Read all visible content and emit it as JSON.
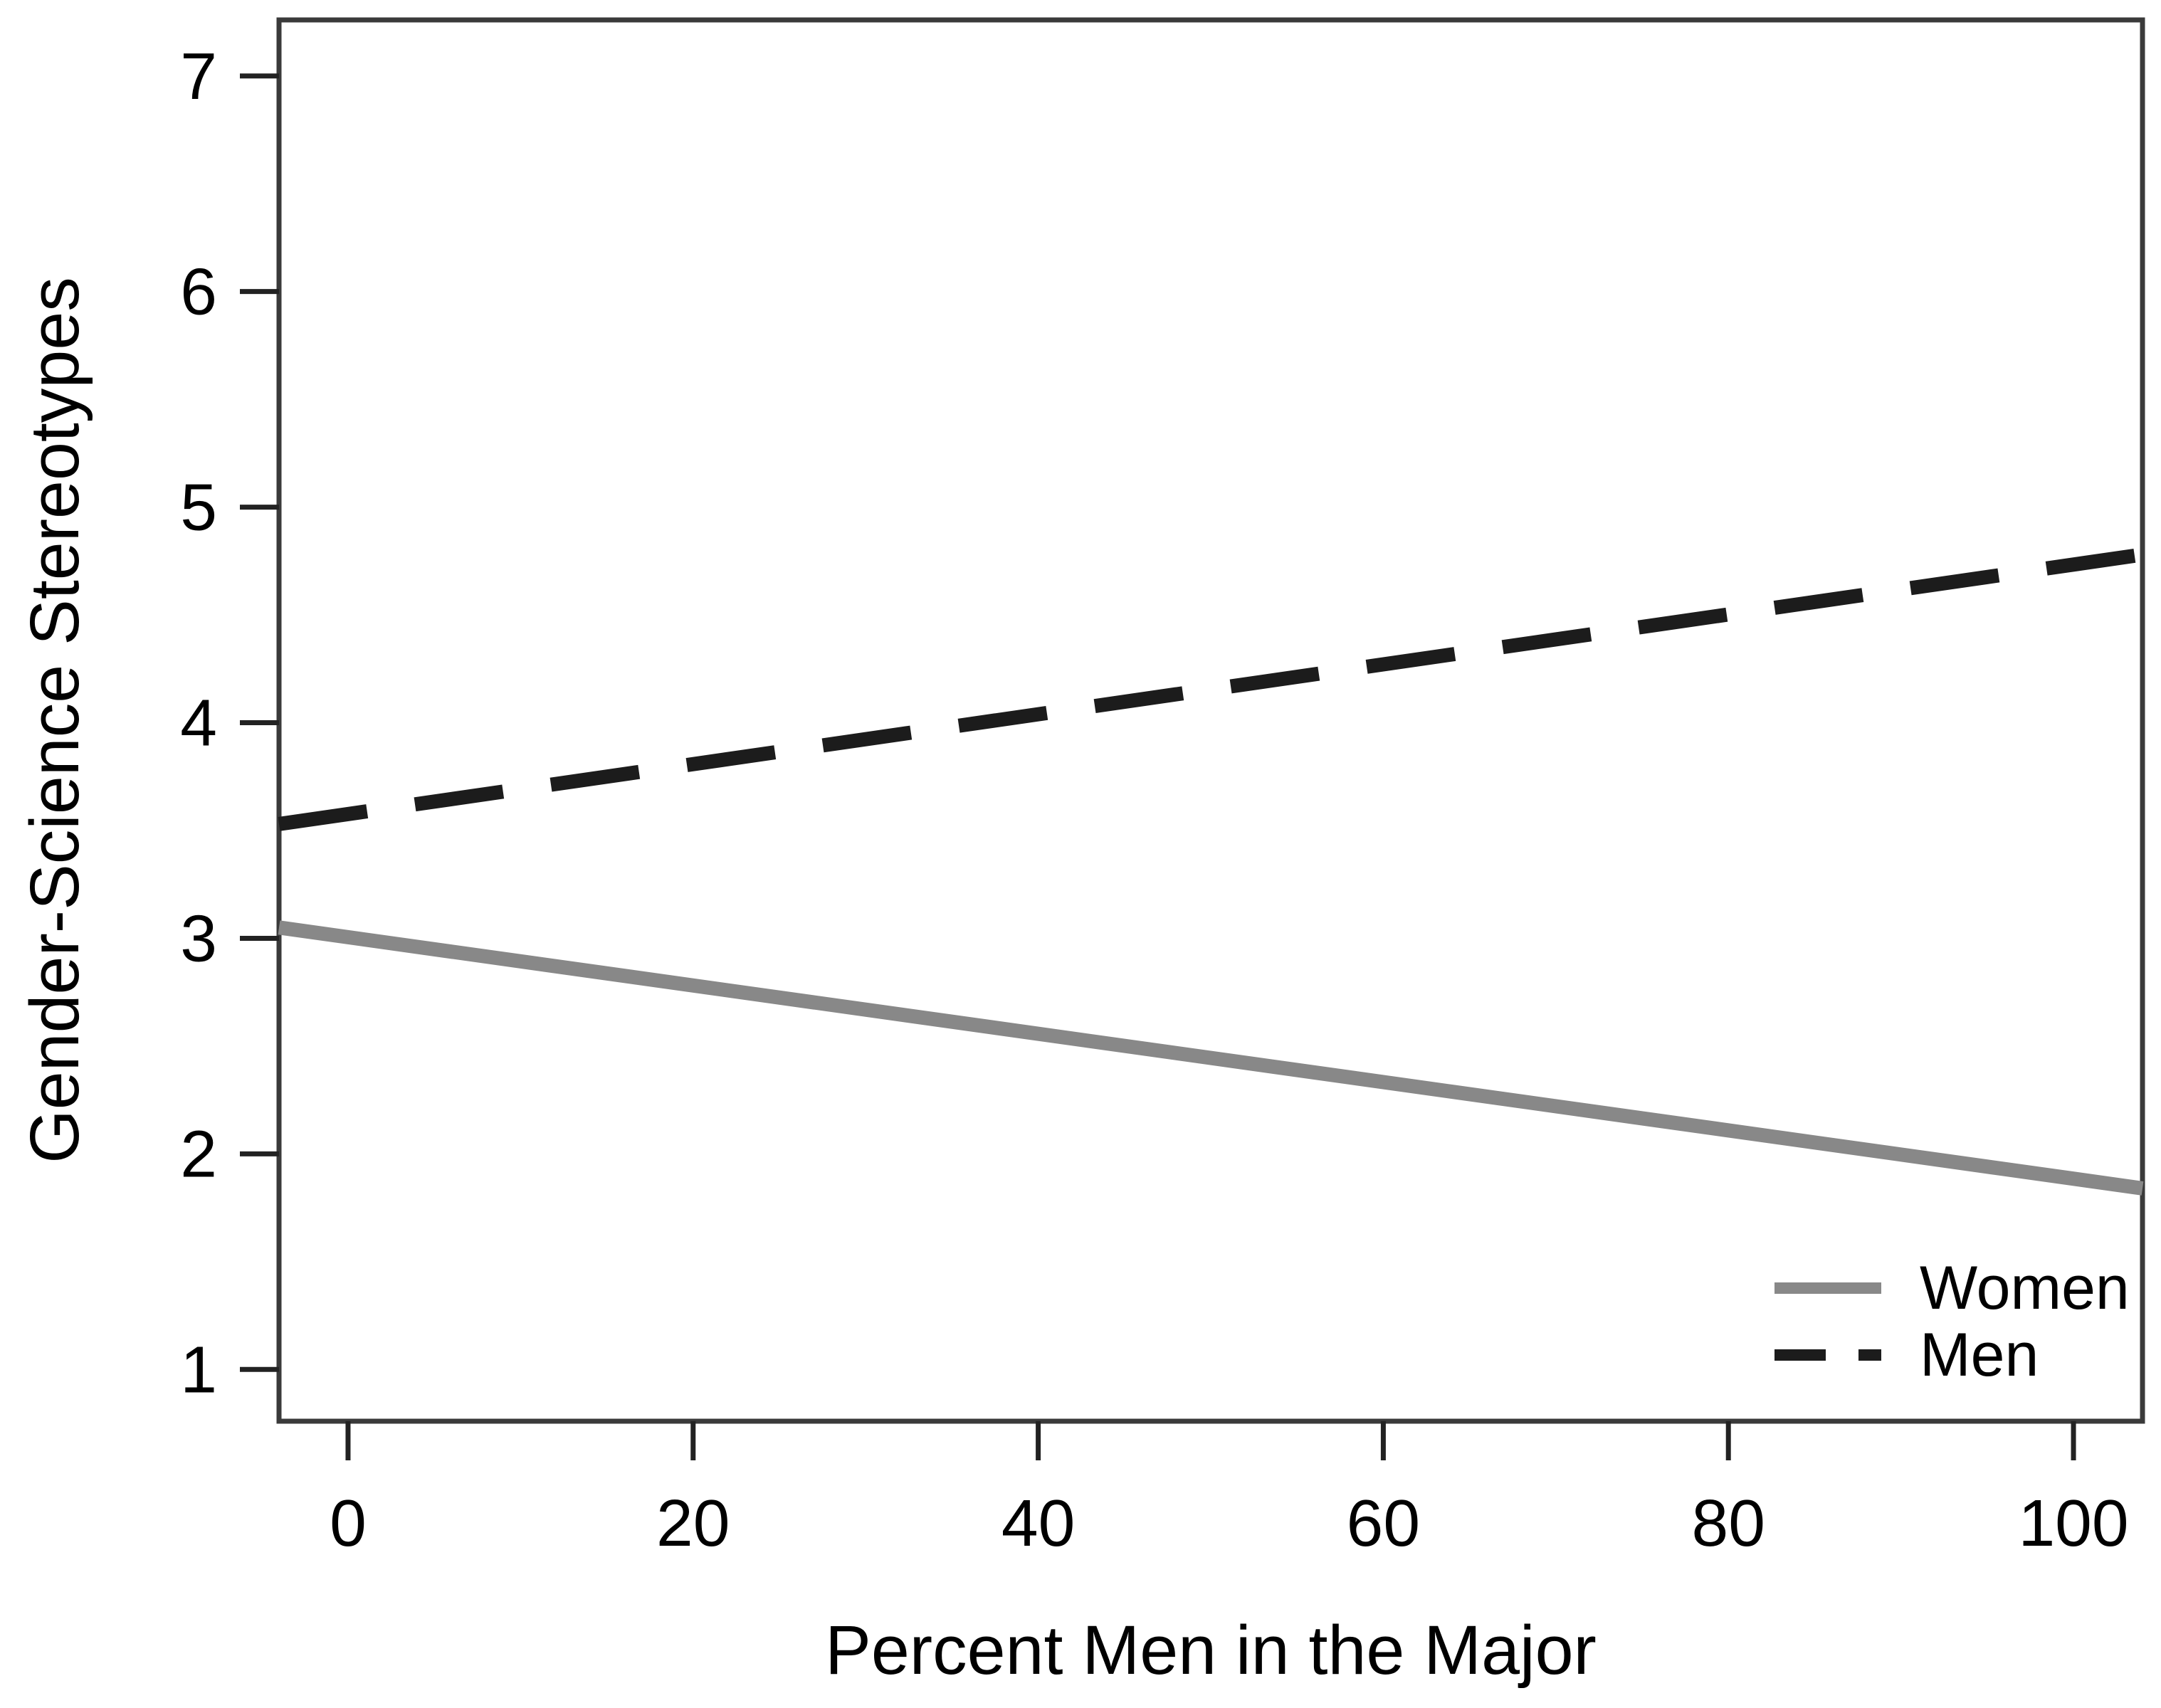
{
  "chart_data": {
    "type": "line",
    "title": "",
    "xlabel": "Percent Men in the Major",
    "ylabel": "Gender-Science Stereotypes",
    "x_ticks": [
      0,
      20,
      40,
      60,
      80,
      100
    ],
    "y_ticks": [
      1,
      2,
      3,
      4,
      5,
      6,
      7
    ],
    "xlim": [
      -4,
      104
    ],
    "ylim": [
      0.76,
      7.26
    ],
    "x_data_range": [
      0,
      100
    ],
    "y_data_range": [
      1,
      7
    ],
    "grid": false,
    "axis_color": "#3a3a3a",
    "tick_color": "#222222",
    "text_color": "#000000",
    "background_color": "#ffffff",
    "legend": {
      "position": "bottom-right-inside",
      "entries": [
        "Women",
        "Men"
      ]
    },
    "series": [
      {
        "name": "Women",
        "line_style": "solid",
        "color": "#888888",
        "x": [
          -4,
          104
        ],
        "y": [
          3.05,
          1.84
        ],
        "value_at_x0": 3.0,
        "value_at_x100": 1.88
      },
      {
        "name": "Men",
        "line_style": "dashed",
        "color": "#1c1c1c",
        "x": [
          -4,
          104
        ],
        "y": [
          3.53,
          4.78
        ],
        "value_at_x0": 3.58,
        "value_at_x100": 4.73
      }
    ]
  }
}
